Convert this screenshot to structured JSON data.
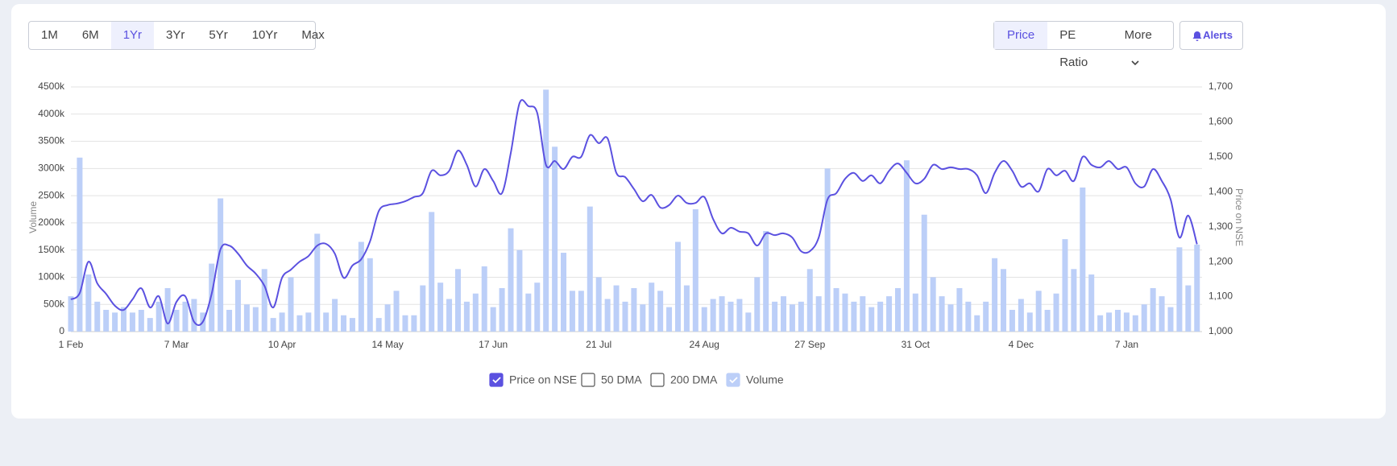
{
  "toolbar": {
    "ranges": [
      "1M",
      "6M",
      "1Yr",
      "3Yr",
      "5Yr",
      "10Yr",
      "Max"
    ],
    "selected_range": 2,
    "views": [
      "Price",
      "PE Ratio",
      "More"
    ],
    "selected_view": 0,
    "alerts": "Alerts"
  },
  "chart_data": {
    "type": "bar-line",
    "y_label": "Volume",
    "y2_label": "Price on NSE",
    "categories": [
      "1 Feb",
      null,
      null,
      null,
      null,
      null,
      null,
      null,
      null,
      null,
      null,
      null,
      "7 Mar",
      null,
      null,
      null,
      null,
      null,
      null,
      null,
      null,
      null,
      null,
      null,
      "10 Apr",
      null,
      null,
      null,
      null,
      null,
      null,
      null,
      null,
      null,
      null,
      null,
      "14 May",
      null,
      null,
      null,
      null,
      null,
      null,
      null,
      null,
      null,
      null,
      null,
      "17 Jun",
      null,
      null,
      null,
      null,
      null,
      null,
      null,
      null,
      null,
      null,
      null,
      "21 Jul",
      null,
      null,
      null,
      null,
      null,
      null,
      null,
      null,
      null,
      null,
      null,
      "24 Aug",
      null,
      null,
      null,
      null,
      null,
      null,
      null,
      null,
      null,
      null,
      null,
      "27 Sep",
      null,
      null,
      null,
      null,
      null,
      null,
      null,
      null,
      null,
      null,
      null,
      "31 Oct",
      null,
      null,
      null,
      null,
      null,
      null,
      null,
      null,
      null,
      null,
      null,
      "4 Dec",
      null,
      null,
      null,
      null,
      null,
      null,
      null,
      null,
      null,
      null,
      null,
      "7 Jan",
      null,
      null,
      null,
      null,
      null,
      null,
      null,
      null
    ],
    "series": [
      {
        "name": "Price on NSE",
        "color": "#5b51e0",
        "axis": "y2",
        "kind": "line",
        "checked": true,
        "values": [
          1092,
          1110,
          1200,
          1138,
          1108,
          1074,
          1062,
          1092,
          1124,
          1069,
          1101,
          1023,
          1085,
          1101,
          1028,
          1028,
          1108,
          1235,
          1246,
          1223,
          1189,
          1166,
          1131,
          1069,
          1154,
          1177,
          1200,
          1216,
          1246,
          1251,
          1223,
          1154,
          1189,
          1207,
          1258,
          1345,
          1362,
          1366,
          1373,
          1385,
          1396,
          1460,
          1447,
          1460,
          1518,
          1477,
          1415,
          1465,
          1431,
          1396,
          1511,
          1654,
          1645,
          1626,
          1477,
          1488,
          1465,
          1500,
          1500,
          1562,
          1539,
          1553,
          1454,
          1442,
          1408,
          1373,
          1391,
          1355,
          1362,
          1389,
          1368,
          1368,
          1385,
          1322,
          1281,
          1297,
          1286,
          1281,
          1246,
          1281,
          1276,
          1281,
          1269,
          1230,
          1230,
          1269,
          1378,
          1396,
          1437,
          1454,
          1431,
          1447,
          1424,
          1460,
          1481,
          1454,
          1424,
          1437,
          1477,
          1465,
          1470,
          1465,
          1465,
          1447,
          1396,
          1454,
          1488,
          1460,
          1415,
          1424,
          1401,
          1465,
          1447,
          1460,
          1431,
          1500,
          1477,
          1470,
          1488,
          1465,
          1470,
          1424,
          1415,
          1465,
          1431,
          1378,
          1269,
          1332,
          1250
        ]
      },
      {
        "name": "Volume",
        "color": "#bccff8",
        "axis": "y",
        "kind": "bar",
        "checked": true,
        "values": [
          650000,
          3200000,
          1050000,
          550000,
          400000,
          350000,
          450000,
          350000,
          400000,
          250000,
          550000,
          800000,
          400000,
          550000,
          600000,
          350000,
          1250000,
          2450000,
          400000,
          950000,
          500000,
          450000,
          1150000,
          250000,
          350000,
          1000000,
          300000,
          350000,
          1800000,
          350000,
          600000,
          300000,
          250000,
          1650000,
          1350000,
          250000,
          500000,
          750000,
          300000,
          300000,
          850000,
          2200000,
          900000,
          600000,
          1150000,
          550000,
          700000,
          1200000,
          450000,
          800000,
          1900000,
          1500000,
          700000,
          900000,
          4450000,
          3400000,
          1450000,
          750000,
          750000,
          2300000,
          1000000,
          600000,
          850000,
          550000,
          800000,
          500000,
          900000,
          750000,
          450000,
          1650000,
          850000,
          2250000,
          450000,
          600000,
          650000,
          550000,
          600000,
          350000,
          1000000,
          1850000,
          550000,
          650000,
          500000,
          550000,
          1150000,
          650000,
          3000000,
          800000,
          700000,
          550000,
          650000,
          450000,
          550000,
          650000,
          800000,
          3150000,
          700000,
          2150000,
          1000000,
          650000,
          500000,
          800000,
          550000,
          300000,
          550000,
          1350000,
          1150000,
          400000,
          600000,
          350000,
          750000,
          400000,
          700000,
          1700000,
          1150000,
          2650000,
          1050000,
          300000,
          350000,
          400000,
          350000,
          300000,
          500000,
          800000,
          650000,
          450000,
          1550000,
          850000,
          1600000
        ]
      }
    ],
    "unchecked_legend": [
      "50 DMA",
      "200 DMA"
    ],
    "ylim": [
      0,
      4500000
    ],
    "yticks": [
      0,
      {
        "value": 500000,
        "label": "500k"
      },
      {
        "value": 1000000,
        "label": "1000k"
      },
      {
        "value": 1500000,
        "label": "1500k"
      },
      {
        "value": 2000000,
        "label": "2000k"
      },
      {
        "value": 2500000,
        "label": "2500k"
      },
      {
        "value": 3000000,
        "label": "3000k"
      },
      {
        "value": 3500000,
        "label": "3500k"
      },
      {
        "value": 4000000,
        "label": "4000k"
      },
      {
        "value": 4500000,
        "label": "4500k"
      }
    ],
    "y2lim": [
      1000,
      1700
    ],
    "y2ticks": [
      {
        "value": 1000,
        "label": "1,000"
      },
      {
        "value": 1100,
        "label": "1,100"
      },
      {
        "value": 1200,
        "label": "1,200"
      },
      {
        "value": 1300,
        "label": "1,300"
      },
      {
        "value": 1400,
        "label": "1,400"
      },
      {
        "value": 1500,
        "label": "1,500"
      },
      {
        "value": 1600,
        "label": "1,600"
      },
      {
        "value": 1700,
        "label": "1,700"
      }
    ],
    "grid": true
  }
}
